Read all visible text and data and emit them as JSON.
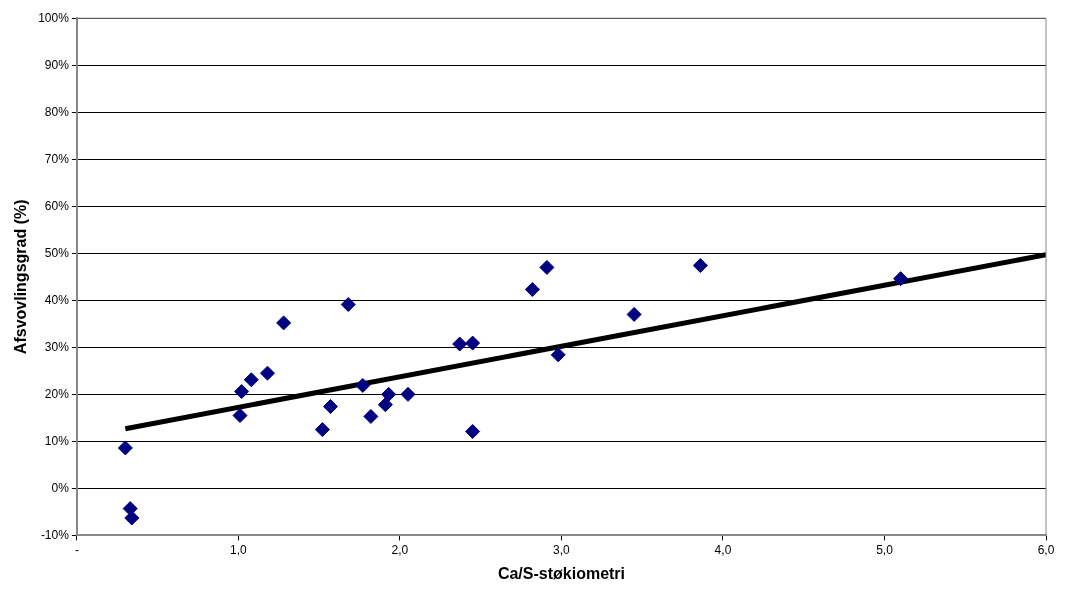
{
  "chart_data": {
    "type": "scatter",
    "xlabel": "Ca/S-støkiometri",
    "ylabel": "Afsvovlingsgrad (%)",
    "xlim": [
      0,
      6
    ],
    "ylim": [
      -10,
      100
    ],
    "xticks": [
      {
        "value": 0,
        "label": "-"
      },
      {
        "value": 1,
        "label": "1,0"
      },
      {
        "value": 2,
        "label": "2,0"
      },
      {
        "value": 3,
        "label": "3,0"
      },
      {
        "value": 4,
        "label": "4,0"
      },
      {
        "value": 5,
        "label": "5,0"
      },
      {
        "value": 6,
        "label": "6,0"
      }
    ],
    "yticks": [
      {
        "value": -10,
        "label": "-10%"
      },
      {
        "value": 0,
        "label": "0%"
      },
      {
        "value": 10,
        "label": "10%"
      },
      {
        "value": 20,
        "label": "20%"
      },
      {
        "value": 30,
        "label": "30%"
      },
      {
        "value": 40,
        "label": "40%"
      },
      {
        "value": 50,
        "label": "50%"
      },
      {
        "value": 60,
        "label": "60%"
      },
      {
        "value": 70,
        "label": "70%"
      },
      {
        "value": 80,
        "label": "80%"
      },
      {
        "value": 90,
        "label": "90%"
      },
      {
        "value": 100,
        "label": "100%"
      }
    ],
    "grid": "y",
    "legend": false,
    "series": [
      {
        "marker": "diamond",
        "color": "#000080",
        "x": [
          0.3,
          0.33,
          0.34,
          1.01,
          1.02,
          1.08,
          1.18,
          1.28,
          1.52,
          1.57,
          1.68,
          1.77,
          1.82,
          1.91,
          1.93,
          2.05,
          2.37,
          2.45,
          2.45,
          2.82,
          2.91,
          2.98,
          3.45,
          3.86,
          5.1
        ],
        "values": [
          8.6,
          -4.3,
          -6.3,
          15.5,
          20.6,
          23.1,
          24.5,
          35.2,
          12.5,
          17.4,
          39.1,
          21.9,
          15.3,
          17.8,
          20.0,
          20.0,
          30.7,
          30.9,
          12.1,
          42.3,
          47.0,
          28.4,
          37.0,
          47.4,
          44.6
        ]
      },
      {
        "type": "line",
        "marker": "none",
        "color": "#000000",
        "x": [
          0.3,
          6.0
        ],
        "values": [
          12.7,
          49.7
        ]
      }
    ]
  }
}
